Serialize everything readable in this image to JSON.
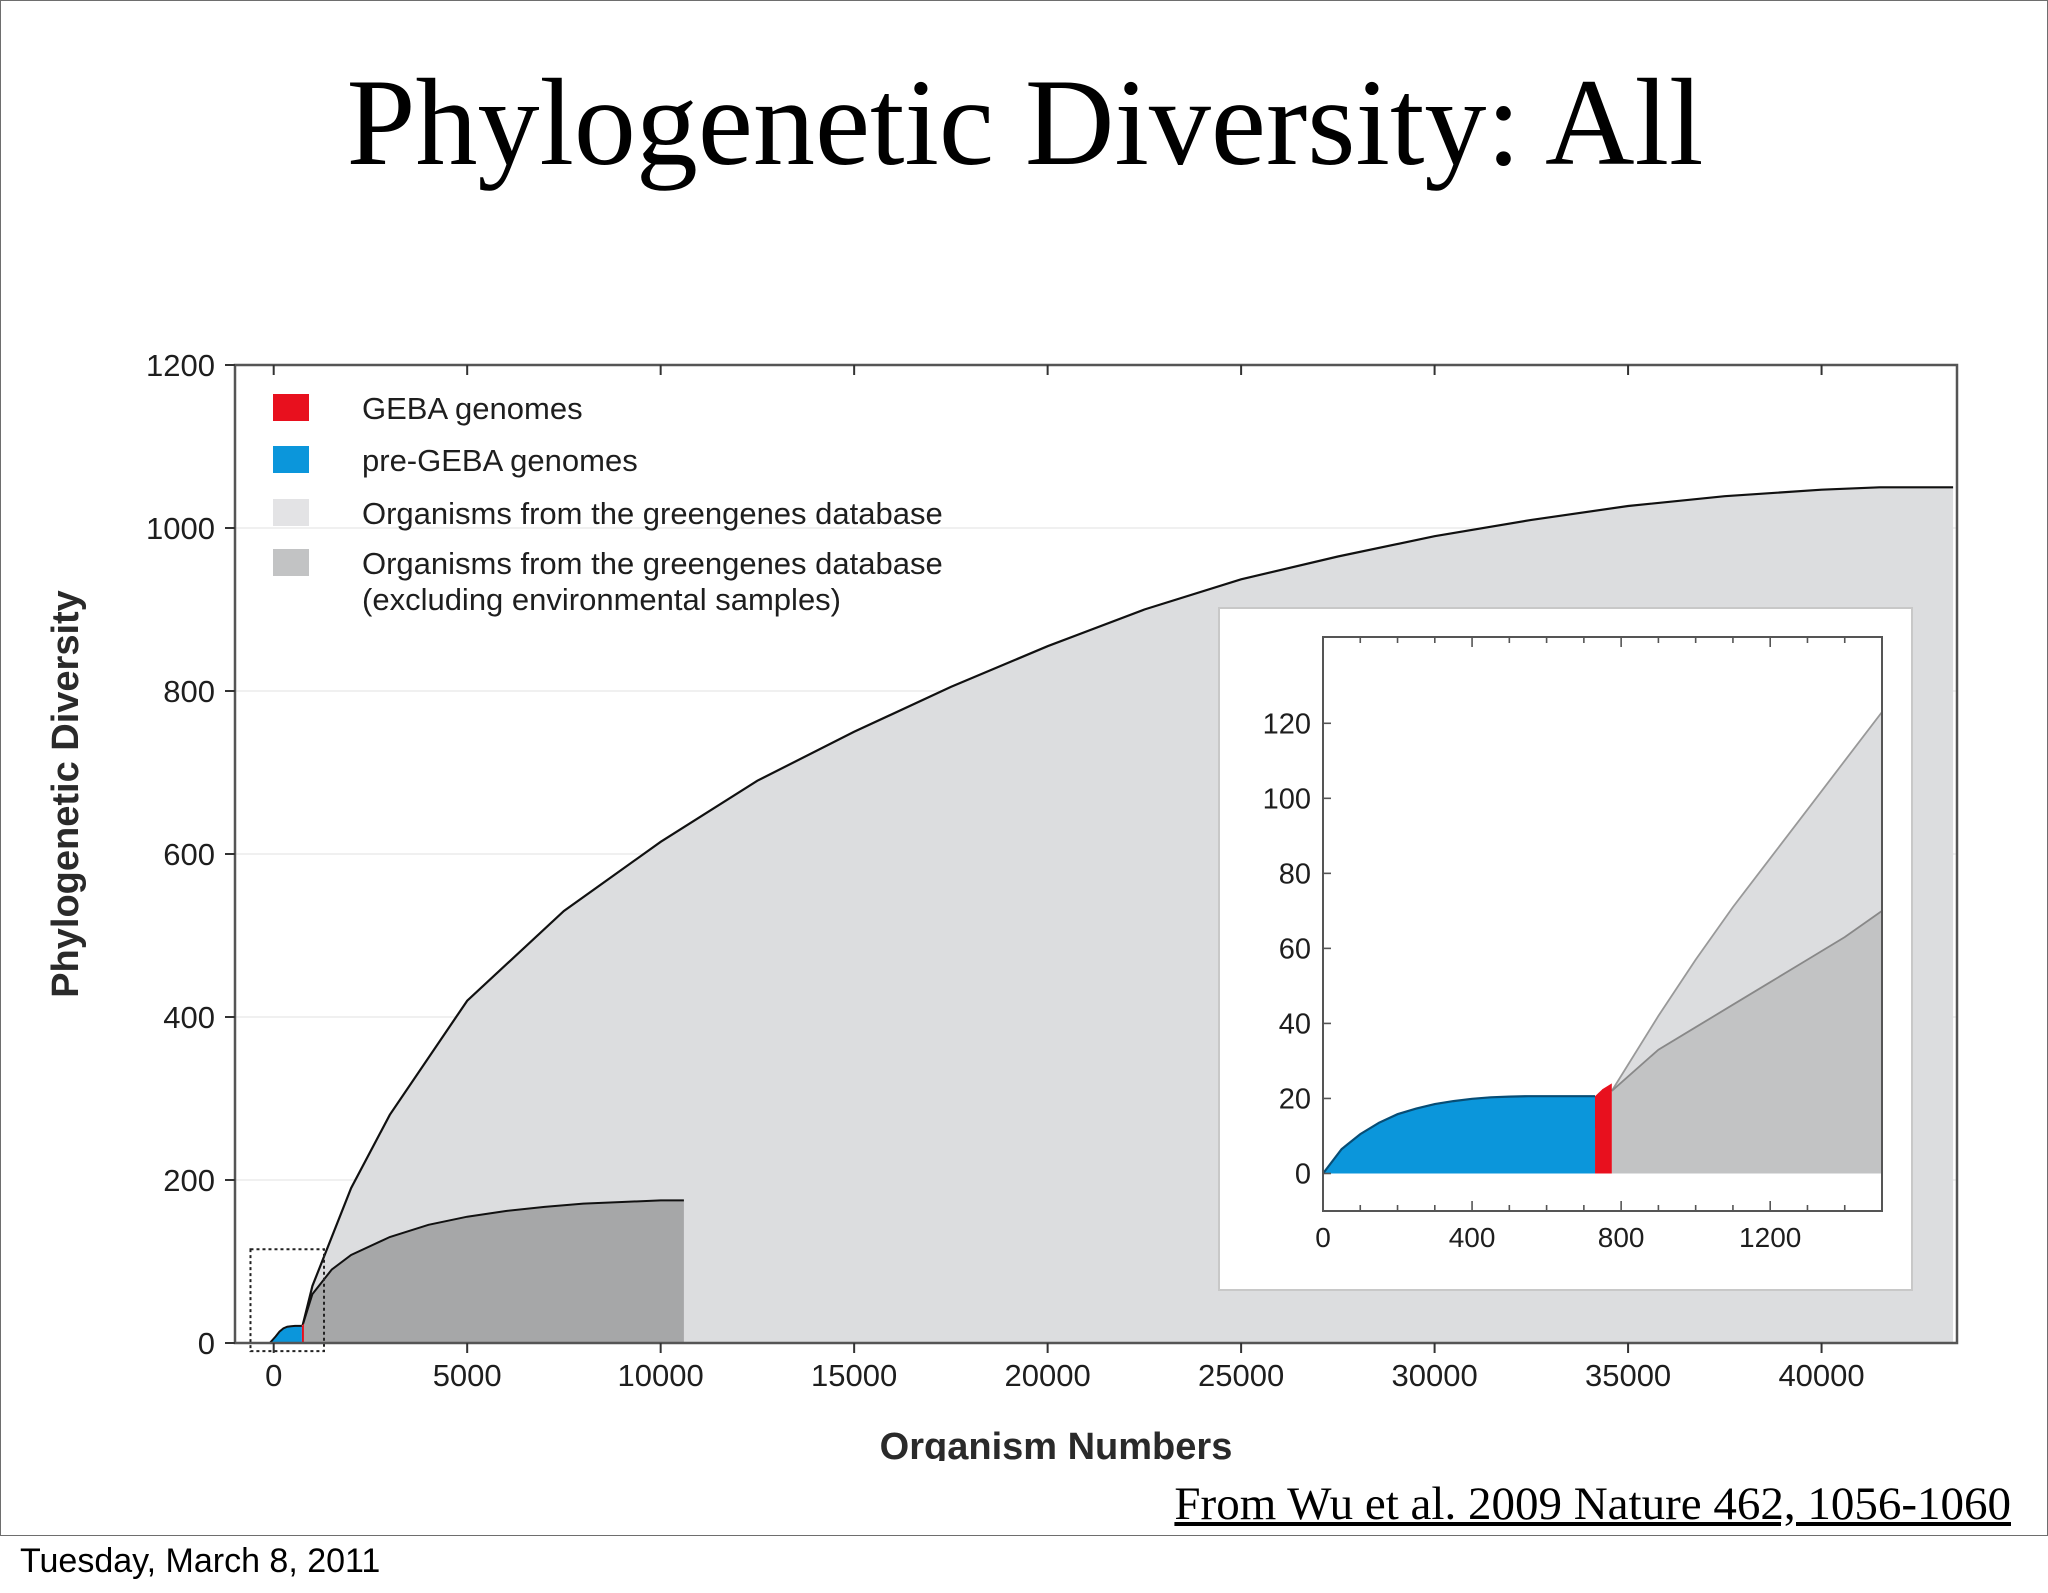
{
  "slide": {
    "title": "Phylogenetic Diversity: All",
    "source": "From Wu et al. 2009 Nature 462, 1056-1060",
    "footer_date": "Tuesday, March 8, 2011"
  },
  "chart_data": [
    {
      "type": "area",
      "xlabel": "Organism Numbers",
      "ylabel": "Phylogenetic Diversity",
      "xlim": [
        -1000,
        43500
      ],
      "ylim": [
        0,
        1200
      ],
      "xticks": [
        0,
        5000,
        10000,
        15000,
        20000,
        25000,
        30000,
        35000,
        40000
      ],
      "yticks": [
        0,
        200,
        400,
        600,
        800,
        1000,
        1200
      ],
      "grid": true,
      "legend_position": "top-left",
      "legend": [
        {
          "label": "GEBA genomes",
          "color": "#e8101e"
        },
        {
          "label": "pre-GEBA genomes",
          "color": "#0b96db"
        },
        {
          "label": "Organisms from the greengenes database",
          "color": "#e3e3e5"
        },
        {
          "label": "Organisms from the greengenes database\n(excluding environmental samples)",
          "color": "#c2c3c4"
        }
      ],
      "series": [
        {
          "name": "Organisms from the greengenes database",
          "color": "#dcdddf",
          "x": [
            750,
            1000,
            2000,
            3000,
            5000,
            7500,
            10000,
            12500,
            15000,
            17500,
            20000,
            22500,
            25000,
            27500,
            30000,
            32500,
            35000,
            37500,
            40000,
            41500,
            43400
          ],
          "y": [
            22,
            70,
            190,
            280,
            420,
            530,
            615,
            690,
            750,
            805,
            855,
            900,
            937,
            965,
            990,
            1010,
            1027,
            1039,
            1047,
            1050,
            1050
          ]
        },
        {
          "name": "Organisms from the greengenes database\n(excluding environmental samples)",
          "color": "#a6a7a8",
          "x": [
            750,
            1000,
            1500,
            2000,
            3000,
            4000,
            5000,
            6000,
            7000,
            8000,
            9000,
            10000,
            10600
          ],
          "y": [
            22,
            60,
            90,
            108,
            130,
            145,
            155,
            162,
            167,
            171,
            173,
            175,
            175
          ]
        },
        {
          "name": "pre-GEBA genomes",
          "color": "#0b96db",
          "x": [
            -100,
            50,
            150,
            250,
            350,
            450,
            550,
            650,
            730
          ],
          "y": [
            0,
            8,
            14,
            18,
            20,
            20.5,
            21,
            21,
            21
          ]
        },
        {
          "name": "GEBA genomes",
          "color": "#e8101e",
          "x": [
            730,
            780
          ],
          "y": [
            21,
            24
          ]
        }
      ]
    },
    {
      "type": "area",
      "xlim": [
        0,
        1500
      ],
      "ylim": [
        -10,
        143
      ],
      "xticks": [
        0,
        400,
        800,
        1200
      ],
      "yticks": [
        0,
        20,
        40,
        60,
        80,
        100,
        120
      ],
      "series": [
        {
          "name": "Organisms from the greengenes database",
          "color": "#dcdddf",
          "x": [
            775,
            900,
            1000,
            1100,
            1200,
            1300,
            1400,
            1500
          ],
          "y": [
            22,
            42,
            57,
            71,
            84,
            97,
            110,
            123
          ]
        },
        {
          "name": "Organisms from the greengenes database\n(excluding environmental samples)",
          "color": "#c2c3c4",
          "x": [
            775,
            900,
            1000,
            1100,
            1200,
            1300,
            1400,
            1500
          ],
          "y": [
            22,
            33,
            39,
            45,
            51,
            57,
            63,
            70
          ]
        },
        {
          "name": "pre-GEBA genomes",
          "color": "#0b96db",
          "x": [
            0,
            50,
            100,
            150,
            200,
            250,
            300,
            350,
            400,
            450,
            500,
            550,
            600,
            650,
            700,
            730
          ],
          "y": [
            0,
            6.5,
            10.5,
            13.5,
            15.8,
            17.3,
            18.5,
            19.3,
            19.9,
            20.3,
            20.5,
            20.6,
            20.6,
            20.6,
            20.6,
            20.6
          ]
        },
        {
          "name": "GEBA genomes",
          "color": "#e8101e",
          "x": [
            730,
            750,
            775
          ],
          "y": [
            20.6,
            22.5,
            24
          ]
        }
      ]
    }
  ]
}
